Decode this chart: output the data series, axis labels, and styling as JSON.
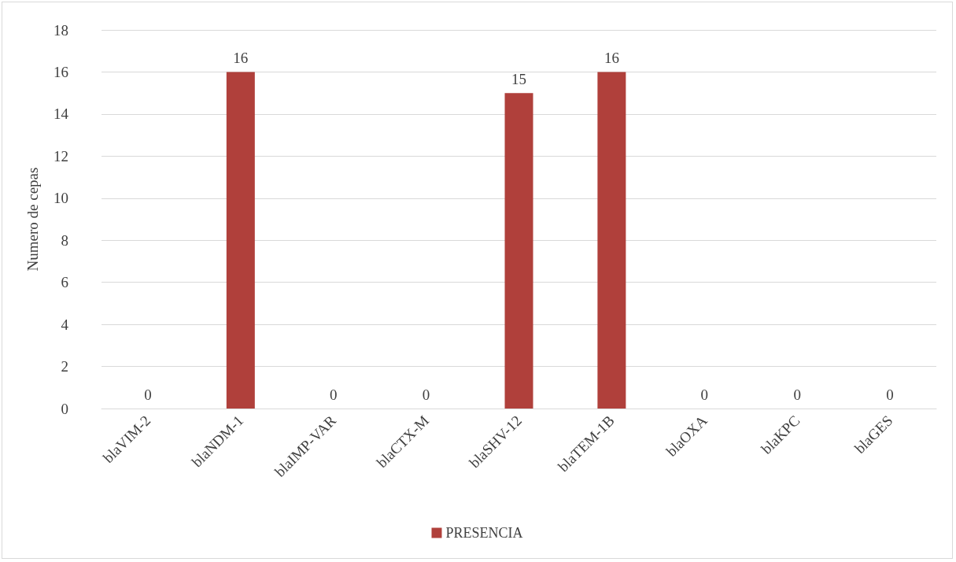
{
  "chart_data": {
    "type": "bar",
    "ylabel": "Numero de cepas",
    "categories": [
      "blaVIM-2",
      "blaNDM-1",
      "blaIMP-VAR",
      "blaCTX-M",
      "blaSHV-12",
      "blaTEM-1B",
      "blaOXA",
      "blaKPC",
      "blaGES"
    ],
    "series": [
      {
        "name": "PRESENCIA",
        "color": "#b0403b",
        "values": [
          0,
          16,
          0,
          0,
          15,
          16,
          0,
          0,
          0
        ]
      }
    ],
    "ylim": [
      0,
      18
    ],
    "yticks": [
      0,
      2,
      4,
      6,
      8,
      10,
      12,
      14,
      16,
      18
    ],
    "grid": "y",
    "legend": "bottom",
    "data_labels": true
  }
}
